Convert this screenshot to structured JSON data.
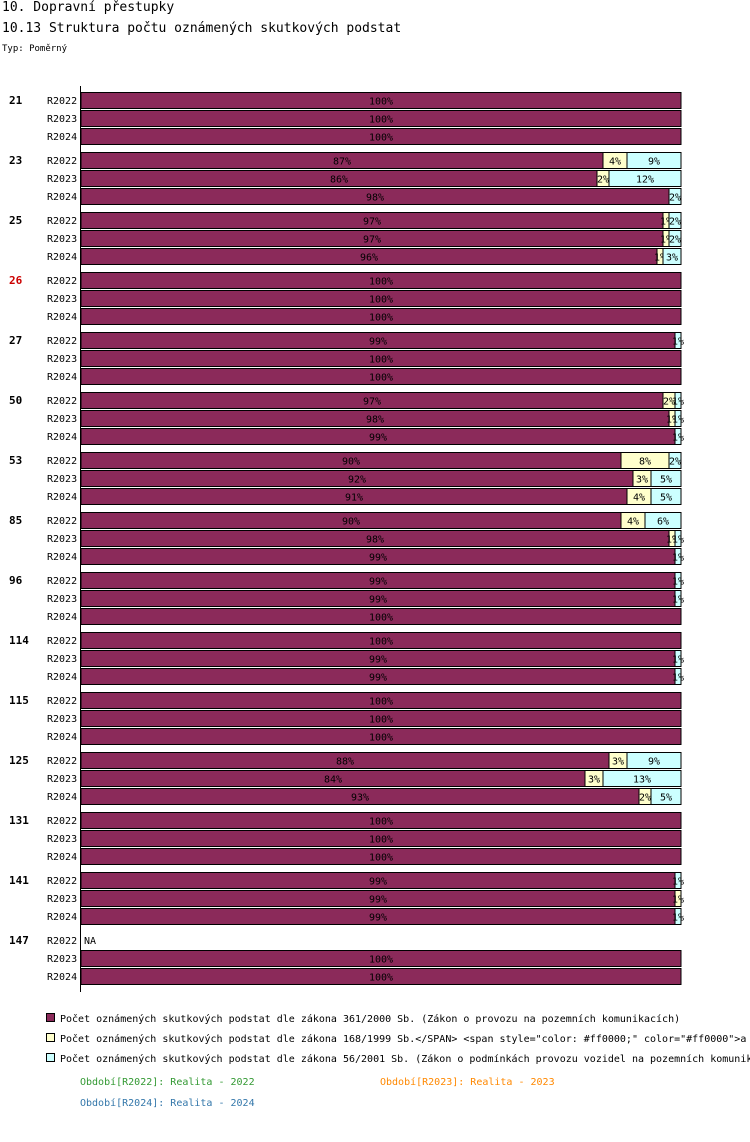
{
  "header": {
    "section_title": "10. Dopravní přestupky",
    "chart_title": "10.13 Struktura počtu oznámených skutkových podstat",
    "type_label": "Typ: Poměrný"
  },
  "colors": {
    "s1": "#8b2a5a",
    "s2": "#ffffcc",
    "s3": "#ccffff",
    "highlight_group": "#cc0000",
    "p2022": "#339933",
    "p2023": "#ff8800",
    "p2024": "#3377aa"
  },
  "legend": [
    {
      "label": "Počet oznámených skutkových podstat dle zákona 361/2000 Sb. (Zákon o provozu na pozemních komunikacích)"
    },
    {
      "label": "Počet oznámených skutkových podstat dle zákona 168/1999 Sb.</SPAN> <span style=\"color: #ff0000;\" color=\"#ff0000\">a"
    },
    {
      "label": "Počet oznámených skutkových podstat dle zákona 56/2001 Sb. (Zákon o podmínkách provozu vozidel na pozemních komunik"
    }
  ],
  "periods": [
    {
      "label": "Období[R2022]: Realita - 2022"
    },
    {
      "label": "Období[R2023]: Realita - 2023"
    },
    {
      "label": "Období[R2024]: Realita - 2024"
    }
  ],
  "chart_data": {
    "type": "bar",
    "orientation": "horizontal",
    "stacked": true,
    "normalized": true,
    "xlim": [
      0,
      100
    ],
    "series_names": [
      "zákon 361/2000 Sb.",
      "zákon 168/1999 Sb.",
      "zákon 56/2001 Sb."
    ],
    "groups": [
      {
        "label": "21",
        "highlight": false,
        "rows": [
          {
            "period": "R2022",
            "values": [
              100,
              0,
              0
            ],
            "labels": [
              "100%",
              "",
              ""
            ]
          },
          {
            "period": "R2023",
            "values": [
              100,
              0,
              0
            ],
            "labels": [
              "100%",
              "",
              ""
            ]
          },
          {
            "period": "R2024",
            "values": [
              100,
              0,
              0
            ],
            "labels": [
              "100%",
              "",
              ""
            ]
          }
        ]
      },
      {
        "label": "23",
        "highlight": false,
        "rows": [
          {
            "period": "R2022",
            "values": [
              87,
              4,
              9
            ],
            "labels": [
              "87%",
              "4%",
              "9%"
            ]
          },
          {
            "period": "R2023",
            "values": [
              86,
              2,
              12
            ],
            "labels": [
              "86%",
              "2%",
              "12%"
            ]
          },
          {
            "period": "R2024",
            "values": [
              98,
              0,
              2
            ],
            "labels": [
              "98%",
              "",
              "2%"
            ]
          }
        ]
      },
      {
        "label": "25",
        "highlight": false,
        "rows": [
          {
            "period": "R2022",
            "values": [
              97,
              1,
              2
            ],
            "labels": [
              "97%",
              "1%",
              "2%"
            ]
          },
          {
            "period": "R2023",
            "values": [
              97,
              1,
              2
            ],
            "labels": [
              "97%",
              "1%",
              "2%"
            ]
          },
          {
            "period": "R2024",
            "values": [
              96,
              1,
              3
            ],
            "labels": [
              "96%",
              "1%",
              "3%"
            ]
          }
        ]
      },
      {
        "label": "26",
        "highlight": true,
        "rows": [
          {
            "period": "R2022",
            "values": [
              100,
              0,
              0
            ],
            "labels": [
              "100%",
              "",
              ""
            ]
          },
          {
            "period": "R2023",
            "values": [
              100,
              0,
              0
            ],
            "labels": [
              "100%",
              "",
              ""
            ]
          },
          {
            "period": "R2024",
            "values": [
              100,
              0,
              0
            ],
            "labels": [
              "100%",
              "",
              ""
            ]
          }
        ]
      },
      {
        "label": "27",
        "highlight": false,
        "rows": [
          {
            "period": "R2022",
            "values": [
              99,
              0,
              1
            ],
            "labels": [
              "99%",
              "",
              "1%"
            ]
          },
          {
            "period": "R2023",
            "values": [
              100,
              0,
              0
            ],
            "labels": [
              "100%",
              "",
              ""
            ]
          },
          {
            "period": "R2024",
            "values": [
              100,
              0,
              0
            ],
            "labels": [
              "100%",
              "",
              ""
            ]
          }
        ]
      },
      {
        "label": "50",
        "highlight": false,
        "rows": [
          {
            "period": "R2022",
            "values": [
              97,
              2,
              1
            ],
            "labels": [
              "97%",
              "2%",
              "1%"
            ]
          },
          {
            "period": "R2023",
            "values": [
              98,
              1,
              1
            ],
            "labels": [
              "98%",
              "1%",
              "1%"
            ]
          },
          {
            "period": "R2024",
            "values": [
              99,
              0,
              1
            ],
            "labels": [
              "99%",
              "",
              "1%"
            ]
          }
        ]
      },
      {
        "label": "53",
        "highlight": false,
        "rows": [
          {
            "period": "R2022",
            "values": [
              90,
              8,
              2
            ],
            "labels": [
              "90%",
              "8%",
              "2%"
            ]
          },
          {
            "period": "R2023",
            "values": [
              92,
              3,
              5
            ],
            "labels": [
              "92%",
              "3%",
              "5%"
            ]
          },
          {
            "period": "R2024",
            "values": [
              91,
              4,
              5
            ],
            "labels": [
              "91%",
              "4%",
              "5%"
            ]
          }
        ]
      },
      {
        "label": "85",
        "highlight": false,
        "rows": [
          {
            "period": "R2022",
            "values": [
              90,
              4,
              6
            ],
            "labels": [
              "90%",
              "4%",
              "6%"
            ]
          },
          {
            "period": "R2023",
            "values": [
              98,
              1,
              1
            ],
            "labels": [
              "98%",
              "1%",
              "1%"
            ]
          },
          {
            "period": "R2024",
            "values": [
              99,
              0,
              1
            ],
            "labels": [
              "99%",
              "",
              "1%"
            ]
          }
        ]
      },
      {
        "label": "96",
        "highlight": false,
        "rows": [
          {
            "period": "R2022",
            "values": [
              99,
              0,
              1
            ],
            "labels": [
              "99%",
              "",
              "1%"
            ]
          },
          {
            "period": "R2023",
            "values": [
              99,
              0,
              1
            ],
            "labels": [
              "99%",
              "",
              "1%"
            ]
          },
          {
            "period": "R2024",
            "values": [
              100,
              0,
              0
            ],
            "labels": [
              "100%",
              "",
              ""
            ]
          }
        ]
      },
      {
        "label": "114",
        "highlight": false,
        "rows": [
          {
            "period": "R2022",
            "values": [
              100,
              0,
              0
            ],
            "labels": [
              "100%",
              "",
              ""
            ]
          },
          {
            "period": "R2023",
            "values": [
              99,
              0,
              1
            ],
            "labels": [
              "99%",
              "",
              "1%"
            ]
          },
          {
            "period": "R2024",
            "values": [
              99,
              0,
              1
            ],
            "labels": [
              "99%",
              "",
              "1%"
            ]
          }
        ]
      },
      {
        "label": "115",
        "highlight": false,
        "rows": [
          {
            "period": "R2022",
            "values": [
              100,
              0,
              0
            ],
            "labels": [
              "100%",
              "",
              ""
            ]
          },
          {
            "period": "R2023",
            "values": [
              100,
              0,
              0
            ],
            "labels": [
              "100%",
              "",
              ""
            ]
          },
          {
            "period": "R2024",
            "values": [
              100,
              0,
              0
            ],
            "labels": [
              "100%",
              "",
              ""
            ]
          }
        ]
      },
      {
        "label": "125",
        "highlight": false,
        "rows": [
          {
            "period": "R2022",
            "values": [
              88,
              3,
              9
            ],
            "labels": [
              "88%",
              "3%",
              "9%"
            ]
          },
          {
            "period": "R2023",
            "values": [
              84,
              3,
              13
            ],
            "labels": [
              "84%",
              "3%",
              "13%"
            ]
          },
          {
            "period": "R2024",
            "values": [
              93,
              2,
              5
            ],
            "labels": [
              "93%",
              "2%",
              "5%"
            ]
          }
        ]
      },
      {
        "label": "131",
        "highlight": false,
        "rows": [
          {
            "period": "R2022",
            "values": [
              100,
              0,
              0
            ],
            "labels": [
              "100%",
              "",
              ""
            ]
          },
          {
            "period": "R2023",
            "values": [
              100,
              0,
              0
            ],
            "labels": [
              "100%",
              "",
              ""
            ]
          },
          {
            "period": "R2024",
            "values": [
              100,
              0,
              0
            ],
            "labels": [
              "100%",
              "",
              ""
            ]
          }
        ]
      },
      {
        "label": "141",
        "highlight": false,
        "rows": [
          {
            "period": "R2022",
            "values": [
              99,
              0,
              1
            ],
            "labels": [
              "99%",
              "",
              "1%"
            ]
          },
          {
            "period": "R2023",
            "values": [
              99,
              1,
              0
            ],
            "labels": [
              "99%",
              "1%",
              ""
            ]
          },
          {
            "period": "R2024",
            "values": [
              99,
              0,
              1
            ],
            "labels": [
              "99%",
              "",
              "1%"
            ]
          }
        ]
      },
      {
        "label": "147",
        "highlight": false,
        "rows": [
          {
            "period": "R2022",
            "na": true,
            "values": [],
            "labels": [
              "NA"
            ]
          },
          {
            "period": "R2023",
            "values": [
              100,
              0,
              0
            ],
            "labels": [
              "100%",
              "",
              ""
            ]
          },
          {
            "period": "R2024",
            "values": [
              100,
              0,
              0
            ],
            "labels": [
              "100%",
              "",
              ""
            ]
          }
        ]
      }
    ]
  }
}
